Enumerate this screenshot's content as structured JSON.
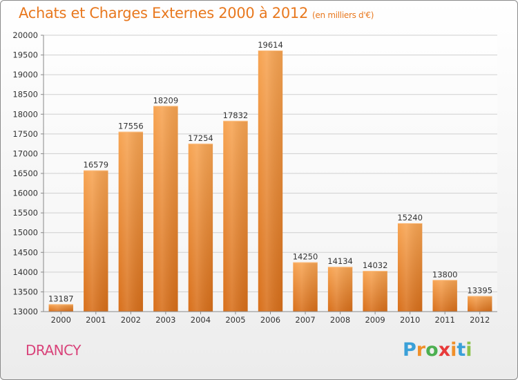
{
  "chart_data": {
    "type": "bar",
    "title": "Achats et Charges Externes 2000 à 2012",
    "subtitle": "(en milliers d'€)",
    "categories": [
      "2000",
      "2001",
      "2002",
      "2003",
      "2004",
      "2005",
      "2006",
      "2007",
      "2008",
      "2009",
      "2010",
      "2011",
      "2012"
    ],
    "values": [
      13187,
      16579,
      17556,
      18209,
      17254,
      17832,
      19614,
      14250,
      14134,
      14032,
      15240,
      13800,
      13395
    ],
    "ylim": [
      13000,
      20000
    ],
    "yticks": [
      13000,
      13500,
      14000,
      14500,
      15000,
      15500,
      16000,
      16500,
      17000,
      17500,
      18000,
      18500,
      19000,
      19500,
      20000
    ],
    "grid": true,
    "bar_color": "#f0903a"
  },
  "location": "DRANCY",
  "logo": {
    "text": "Proxiti",
    "letters": [
      "P",
      "r",
      "o",
      "x",
      "i",
      "t",
      "i"
    ],
    "colors": [
      "#3aa0d8",
      "#f0902a",
      "#4caf50",
      "#e83a3a",
      "#f0902a",
      "#3aa0d8",
      "#8bc34a"
    ]
  }
}
